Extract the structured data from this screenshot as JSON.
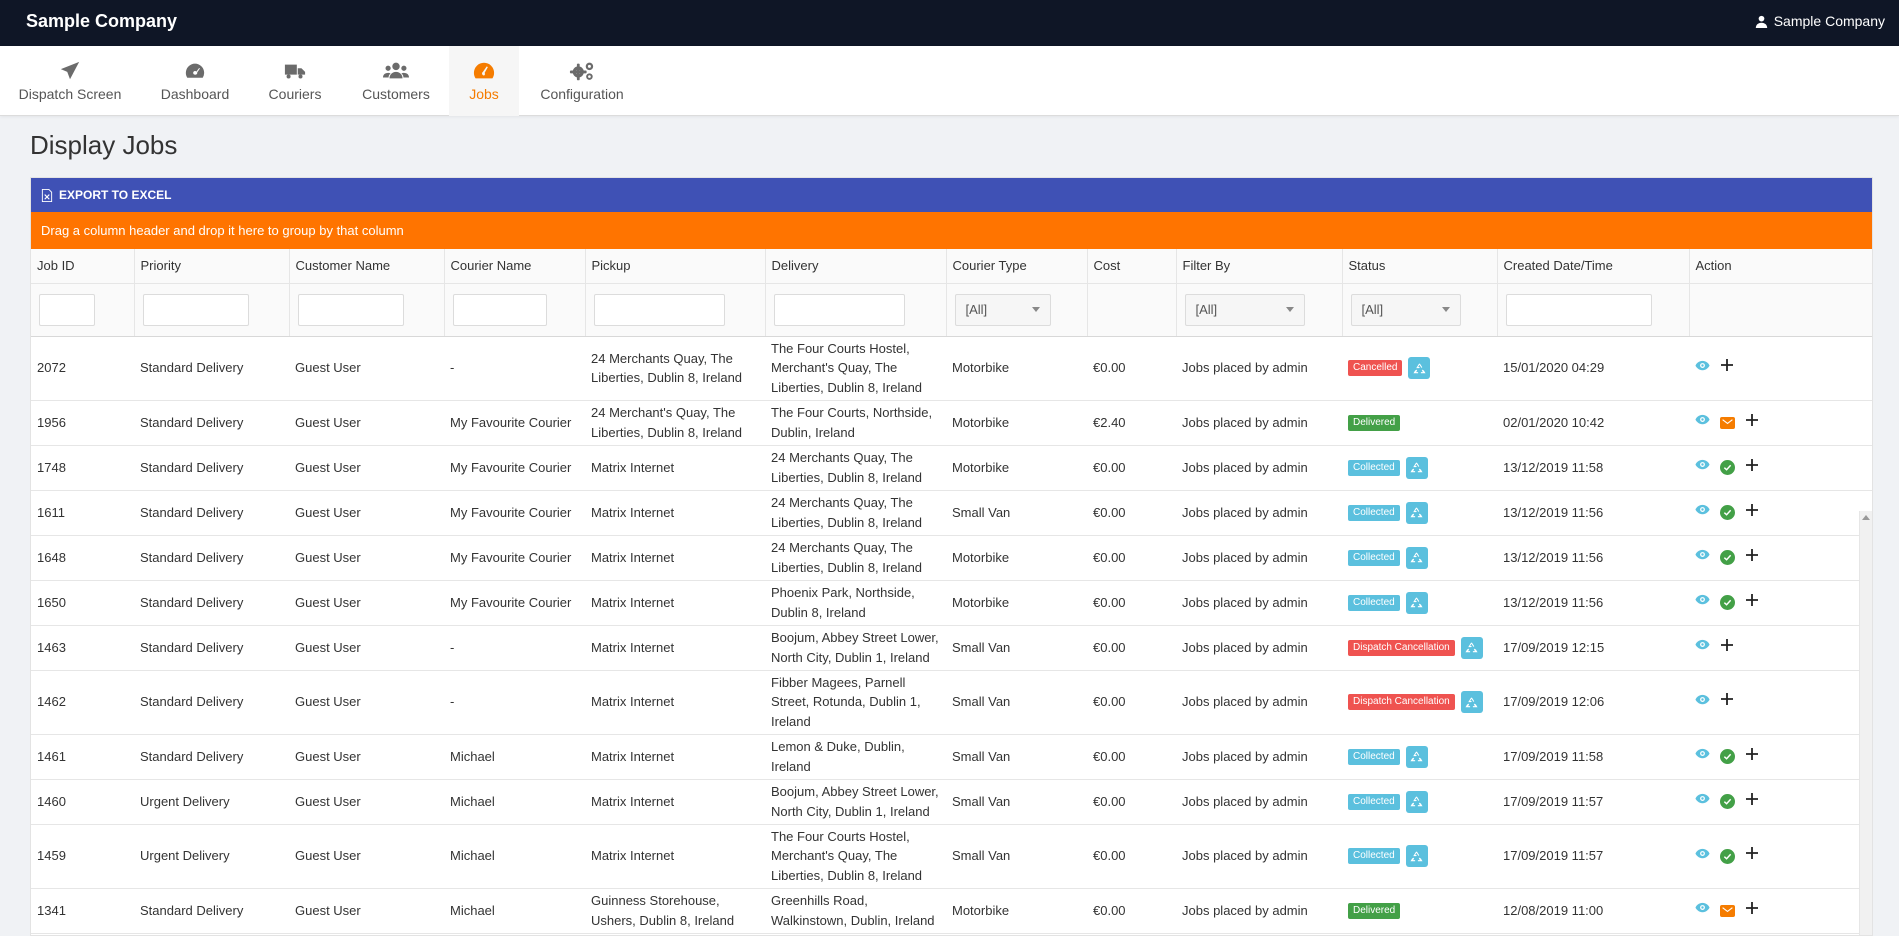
{
  "app": {
    "brand": "Sample Company",
    "user": "Sample Company"
  },
  "nav": [
    {
      "label": "Dispatch Screen",
      "icon": "paper-plane-icon",
      "active": false
    },
    {
      "label": "Dashboard",
      "icon": "dashboard-icon",
      "active": false
    },
    {
      "label": "Couriers",
      "icon": "truck-icon",
      "active": false
    },
    {
      "label": "Customers",
      "icon": "users-icon",
      "active": false
    },
    {
      "label": "Jobs",
      "icon": "tachometer-icon",
      "active": true
    },
    {
      "label": "Configuration",
      "icon": "cogs-icon",
      "active": false
    }
  ],
  "page": {
    "title": "Display Jobs"
  },
  "toolbar": {
    "export_label": "EXPORT TO EXCEL"
  },
  "group_panel": {
    "text": "Drag a column header and drop it here to group by that column"
  },
  "columns": [
    "Job ID",
    "Priority",
    "Customer Name",
    "Courier Name",
    "Pickup",
    "Delivery",
    "Courier Type",
    "Cost",
    "Filter By",
    "Status",
    "Created Date/Time",
    "Action"
  ],
  "filters": {
    "courier_type": "[All]",
    "filter_by": "[All]",
    "status": "[All]"
  },
  "rows": [
    {
      "id": "2072",
      "priority": "Standard Delivery",
      "customer": "Guest User",
      "courier": "-",
      "pickup": "24 Merchants Quay, The Liberties, Dublin 8, Ireland",
      "delivery": "The Four Courts Hostel, Merchant's Quay, The Liberties, Dublin 8, Ireland",
      "type": "Motorbike",
      "cost": "€0.00",
      "filter_by": "Jobs placed by admin",
      "status": "Cancelled",
      "status_kind": "cancel",
      "recycle": true,
      "created": "15/01/2020 04:29",
      "actions": [
        "eye",
        "plus"
      ]
    },
    {
      "id": "1956",
      "priority": "Standard Delivery",
      "customer": "Guest User",
      "courier": "My Favourite Courier",
      "pickup": "24 Merchant's Quay, The Liberties, Dublin 8, Ireland",
      "delivery": "The Four Courts, Northside, Dublin, Ireland",
      "type": "Motorbike",
      "cost": "€2.40",
      "filter_by": "Jobs placed by admin",
      "status": "Delivered",
      "status_kind": "deliv",
      "recycle": false,
      "created": "02/01/2020 10:42",
      "actions": [
        "eye",
        "mail",
        "plus"
      ]
    },
    {
      "id": "1748",
      "priority": "Standard Delivery",
      "customer": "Guest User",
      "courier": "My Favourite Courier",
      "pickup": "Matrix Internet",
      "delivery": "24 Merchants Quay, The Liberties, Dublin 8, Ireland",
      "type": "Motorbike",
      "cost": "€0.00",
      "filter_by": "Jobs placed by admin",
      "status": "Collected",
      "status_kind": "coll",
      "recycle": true,
      "created": "13/12/2019 11:58",
      "actions": [
        "eye",
        "check",
        "plus"
      ]
    },
    {
      "id": "1611",
      "priority": "Standard Delivery",
      "customer": "Guest User",
      "courier": "My Favourite Courier",
      "pickup": "Matrix Internet",
      "delivery": "24 Merchants Quay, The Liberties, Dublin 8, Ireland",
      "type": "Small Van",
      "cost": "€0.00",
      "filter_by": "Jobs placed by admin",
      "status": "Collected",
      "status_kind": "coll",
      "recycle": true,
      "created": "13/12/2019 11:56",
      "actions": [
        "eye",
        "check",
        "plus"
      ]
    },
    {
      "id": "1648",
      "priority": "Standard Delivery",
      "customer": "Guest User",
      "courier": "My Favourite Courier",
      "pickup": "Matrix Internet",
      "delivery": "24 Merchants Quay, The Liberties, Dublin 8, Ireland",
      "type": "Motorbike",
      "cost": "€0.00",
      "filter_by": "Jobs placed by admin",
      "status": "Collected",
      "status_kind": "coll",
      "recycle": true,
      "created": "13/12/2019 11:56",
      "actions": [
        "eye",
        "check",
        "plus"
      ]
    },
    {
      "id": "1650",
      "priority": "Standard Delivery",
      "customer": "Guest User",
      "courier": "My Favourite Courier",
      "pickup": "Matrix Internet",
      "delivery": "Phoenix Park, Northside, Dublin 8, Ireland",
      "type": "Motorbike",
      "cost": "€0.00",
      "filter_by": "Jobs placed by admin",
      "status": "Collected",
      "status_kind": "coll",
      "recycle": true,
      "created": "13/12/2019 11:56",
      "actions": [
        "eye",
        "check",
        "plus"
      ]
    },
    {
      "id": "1463",
      "priority": "Standard Delivery",
      "customer": "Guest User",
      "courier": "-",
      "pickup": "Matrix Internet",
      "delivery": "Boojum, Abbey Street Lower, North City, Dublin 1, Ireland",
      "type": "Small Van",
      "cost": "€0.00",
      "filter_by": "Jobs placed by admin",
      "status": "Dispatch Cancellation",
      "status_kind": "cancel",
      "recycle": true,
      "created": "17/09/2019 12:15",
      "actions": [
        "eye",
        "plus"
      ]
    },
    {
      "id": "1462",
      "priority": "Standard Delivery",
      "customer": "Guest User",
      "courier": "-",
      "pickup": "Matrix Internet",
      "delivery": "Fibber Magees, Parnell Street, Rotunda, Dublin 1, Ireland",
      "type": "Small Van",
      "cost": "€0.00",
      "filter_by": "Jobs placed by admin",
      "status": "Dispatch Cancellation",
      "status_kind": "cancel",
      "recycle": true,
      "created": "17/09/2019 12:06",
      "actions": [
        "eye",
        "plus"
      ]
    },
    {
      "id": "1461",
      "priority": "Standard Delivery",
      "customer": "Guest User",
      "courier": "Michael",
      "pickup": "Matrix Internet",
      "delivery": "Lemon & Duke, Dublin, Ireland",
      "type": "Small Van",
      "cost": "€0.00",
      "filter_by": "Jobs placed by admin",
      "status": "Collected",
      "status_kind": "coll",
      "recycle": true,
      "created": "17/09/2019 11:58",
      "actions": [
        "eye",
        "check",
        "plus"
      ]
    },
    {
      "id": "1460",
      "priority": "Urgent Delivery",
      "customer": "Guest User",
      "courier": "Michael",
      "pickup": "Matrix Internet",
      "delivery": "Boojum, Abbey Street Lower, North City, Dublin 1, Ireland",
      "type": "Small Van",
      "cost": "€0.00",
      "filter_by": "Jobs placed by admin",
      "status": "Collected",
      "status_kind": "coll",
      "recycle": true,
      "created": "17/09/2019 11:57",
      "actions": [
        "eye",
        "check",
        "plus"
      ]
    },
    {
      "id": "1459",
      "priority": "Urgent Delivery",
      "customer": "Guest User",
      "courier": "Michael",
      "pickup": "Matrix Internet",
      "delivery": "The Four Courts Hostel, Merchant's Quay, The Liberties, Dublin 8, Ireland",
      "type": "Small Van",
      "cost": "€0.00",
      "filter_by": "Jobs placed by admin",
      "status": "Collected",
      "status_kind": "coll",
      "recycle": true,
      "created": "17/09/2019 11:57",
      "actions": [
        "eye",
        "check",
        "plus"
      ]
    },
    {
      "id": "1341",
      "priority": "Standard Delivery",
      "customer": "Guest User",
      "courier": "Michael",
      "pickup": "Guinness Storehouse, Ushers, Dublin 8, Ireland",
      "delivery": "Greenhills Road, Walkinstown, Dublin, Ireland",
      "type": "Motorbike",
      "cost": "€0.00",
      "filter_by": "Jobs placed by admin",
      "status": "Delivered",
      "status_kind": "deliv",
      "recycle": false,
      "created": "12/08/2019 11:00",
      "actions": [
        "eye",
        "mail",
        "plus"
      ]
    }
  ],
  "colors": {
    "topbar": "#0f1626",
    "accent": "#f57c00",
    "toolbar": "#3f51b5",
    "group_panel": "#ff7400",
    "cancelled": "#ef5350",
    "delivered": "#43a047",
    "collected": "#5bc0de"
  }
}
